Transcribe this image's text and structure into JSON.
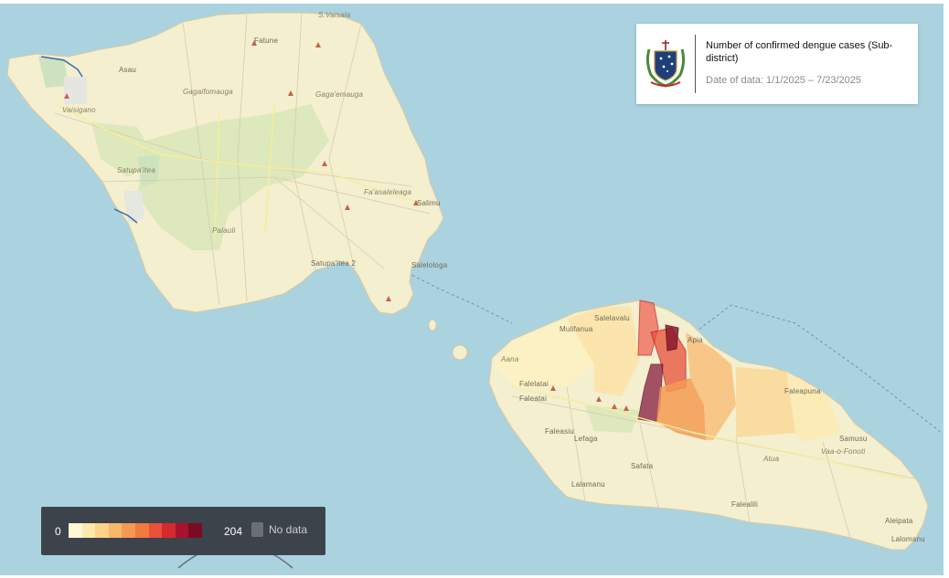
{
  "title_card": {
    "title": "Number of confirmed dengue cases (Sub-district)",
    "date_text": "Date of data: 1/1/2025 – 7/23/2025",
    "logo_icon": "samoa-coat-of-arms-icon"
  },
  "legend": {
    "min_label": "0",
    "max_label": "204",
    "no_data_label": "No data",
    "no_data_color": "#6a6f76",
    "ramp_colors": [
      "#fff7d6",
      "#fde9ab",
      "#fbd48a",
      "#f8b86a",
      "#f59a52",
      "#f07a40",
      "#e8513a",
      "#d42a2e",
      "#a9122c",
      "#7a0b24"
    ]
  },
  "map": {
    "water_color": "#aad3df",
    "land_color": "#f3efcf",
    "place_labels": {
      "savaii": [
        "S.Vaisala",
        "Fatune",
        "Asau",
        "Gagaifomauga",
        "Gaga'emauga",
        "Vaisigano",
        "Satupa'itea",
        "Palauli",
        "Fa'asaleleaga",
        "Salimu",
        "Satupa'itea 2",
        "Salelologa"
      ],
      "upolu": [
        "Mulifanua",
        "Salelavalu",
        "Aana",
        "Faleatai",
        "Faleasiu",
        "Lefaga",
        "Safata",
        "Lalamanu",
        "Apia",
        "Faleapuna",
        "Vaa-o-Fonoti",
        "Atua",
        "Falealili",
        "Aleipata",
        "Lalomanu",
        "Samusu",
        "Falelatai"
      ]
    },
    "choropleth_classes": {
      "high_count": "#7a0b24",
      "upper_mid": "#e8513a",
      "mid": "#f59a52",
      "low_mid": "#fbd48a",
      "low": "#fff7d6"
    }
  }
}
